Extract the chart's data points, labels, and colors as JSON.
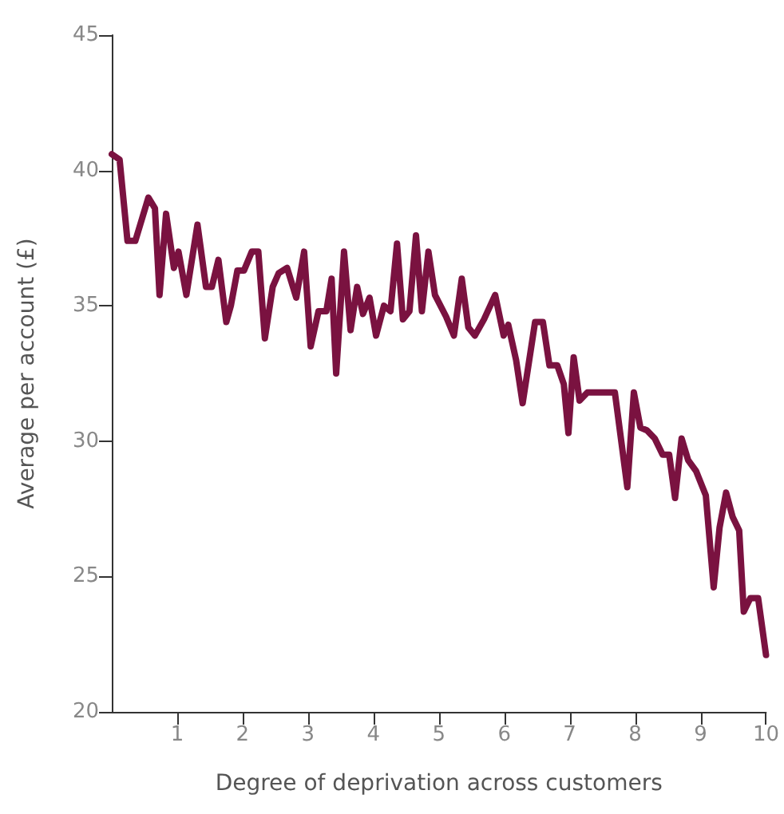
{
  "chart_data": {
    "type": "line",
    "xlabel": "Degree of deprivation across customers",
    "ylabel": "Average per account (£)",
    "xlim": [
      0,
      10
    ],
    "xticks": [
      1,
      2,
      3,
      4,
      5,
      6,
      7,
      8,
      9,
      10
    ],
    "ylim": [
      20,
      45
    ],
    "yticks": [
      20,
      25,
      30,
      35,
      40,
      45
    ],
    "grid": false,
    "marker": "none",
    "line_style": "solid",
    "series": [
      {
        "color": "#7a1240",
        "x": [
          0,
          0.12,
          0.24,
          0.36,
          0.56,
          0.66,
          0.73,
          0.83,
          0.95,
          1.02,
          1.14,
          1.31,
          1.44,
          1.53,
          1.63,
          1.75,
          1.82,
          1.92,
          2.02,
          2.14,
          2.24,
          2.34,
          2.46,
          2.55,
          2.68,
          2.82,
          2.94,
          3.04,
          3.16,
          3.28,
          3.36,
          3.43,
          3.55,
          3.65,
          3.75,
          3.84,
          3.94,
          4.04,
          4.16,
          4.26,
          4.36,
          4.45,
          4.55,
          4.65,
          4.74,
          4.84,
          4.94,
          5.11,
          5.23,
          5.35,
          5.45,
          5.55,
          5.69,
          5.86,
          5.99,
          6.06,
          6.18,
          6.28,
          6.47,
          6.59,
          6.69,
          6.81,
          6.91,
          6.98,
          7.06,
          7.15,
          7.27,
          7.69,
          7.88,
          7.98,
          8.08,
          8.18,
          8.3,
          8.42,
          8.52,
          8.61,
          8.71,
          8.81,
          8.93,
          9.08,
          9.2,
          9.29,
          9.39,
          9.49,
          9.59,
          9.66,
          9.76,
          9.88,
          10
        ],
        "values": [
          40.6,
          40.4,
          37.4,
          37.4,
          39.0,
          38.6,
          35.4,
          38.4,
          36.4,
          37.0,
          35.4,
          38.0,
          35.7,
          35.7,
          36.7,
          34.4,
          35.0,
          36.3,
          36.3,
          37.0,
          37.0,
          33.8,
          35.7,
          36.2,
          36.4,
          35.3,
          37.0,
          33.5,
          34.8,
          34.8,
          36.0,
          32.5,
          37.0,
          34.1,
          35.7,
          34.7,
          35.3,
          33.9,
          35.0,
          34.8,
          37.3,
          34.5,
          34.8,
          37.6,
          34.8,
          37.0,
          35.4,
          34.6,
          33.9,
          36.0,
          34.2,
          33.9,
          34.5,
          35.4,
          33.9,
          34.3,
          33.0,
          31.4,
          34.4,
          34.4,
          32.8,
          32.8,
          32.1,
          30.3,
          33.1,
          31.5,
          31.8,
          31.8,
          28.3,
          31.8,
          30.5,
          30.4,
          30.1,
          29.5,
          29.5,
          27.9,
          30.1,
          29.3,
          28.9,
          28.0,
          24.6,
          26.8,
          28.1,
          27.2,
          26.7,
          23.7,
          24.2,
          24.2,
          22.1
        ]
      }
    ]
  }
}
